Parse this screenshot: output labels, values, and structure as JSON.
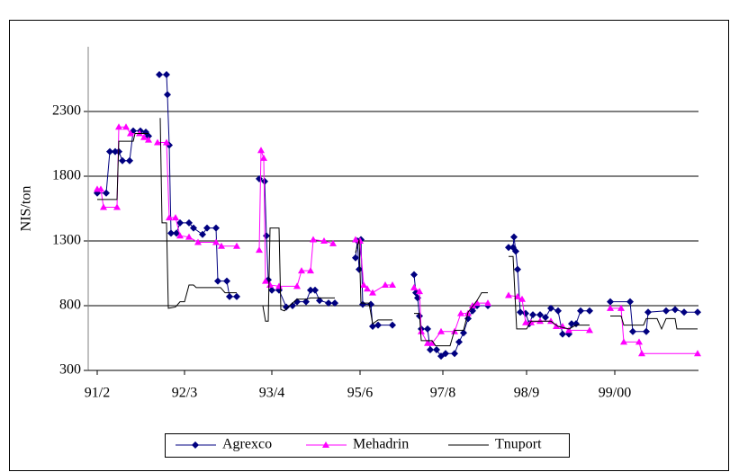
{
  "chart_data": {
    "type": "line",
    "y_label": "NIS/ton",
    "ylim": [
      300,
      2800
    ],
    "yticks": [
      300,
      800,
      1300,
      1800,
      2300
    ],
    "grid": true,
    "xlim": [
      -10,
      668
    ],
    "xticks": [
      {
        "value": 0,
        "label": "91/2"
      },
      {
        "value": 97,
        "label": "92/3"
      },
      {
        "value": 194,
        "label": "93/4"
      },
      {
        "value": 292,
        "label": "95/6"
      },
      {
        "value": 384,
        "label": "97/8"
      },
      {
        "value": 477,
        "label": "98/9"
      },
      {
        "value": 575,
        "label": "99/00"
      }
    ],
    "legend": "bottom",
    "series": [
      {
        "name": "Agrexco",
        "color": "#000080",
        "marker": "diamond",
        "x": [
          0,
          10,
          14,
          20,
          24,
          28,
          36,
          40,
          48,
          54,
          57,
          null,
          69,
          77,
          78,
          80,
          82,
          88,
          92,
          102,
          107,
          117,
          122,
          132,
          134,
          144,
          147,
          155,
          null,
          180,
          186,
          188,
          190,
          194,
          202,
          210,
          217,
          222,
          232,
          237,
          242,
          247,
          257,
          264,
          null,
          287,
          289,
          291,
          293,
          295,
          304,
          306,
          312,
          328,
          null,
          352,
          354,
          356,
          358,
          360,
          367,
          370,
          377,
          382,
          387,
          397,
          402,
          407,
          412,
          417,
          422,
          434,
          null,
          457,
          462,
          463,
          465,
          467,
          470,
          476,
          480,
          484,
          492,
          498,
          504,
          512,
          517,
          524,
          527,
          532,
          537,
          547,
          null,
          570,
          592,
          595,
          610,
          612,
          632,
          642,
          652,
          667
        ],
        "values": [
          1670,
          1670,
          1990,
          1990,
          1990,
          1920,
          1920,
          2150,
          2150,
          2140,
          2110,
          null,
          2585,
          2585,
          2430,
          2040,
          1360,
          1360,
          1440,
          1440,
          1400,
          1350,
          1400,
          1400,
          990,
          990,
          870,
          870,
          null,
          1780,
          1760,
          1340,
          1000,
          920,
          920,
          790,
          800,
          830,
          830,
          920,
          920,
          840,
          820,
          820,
          null,
          1170,
          1300,
          1080,
          1310,
          810,
          810,
          640,
          650,
          650,
          null,
          1040,
          900,
          860,
          720,
          620,
          620,
          460,
          460,
          410,
          430,
          430,
          520,
          590,
          700,
          760,
          800,
          800,
          null,
          1250,
          1250,
          1330,
          1220,
          1080,
          750,
          740,
          660,
          730,
          730,
          710,
          780,
          760,
          580,
          580,
          660,
          660,
          760,
          760,
          null,
          830,
          830,
          600,
          600,
          750,
          760,
          770,
          750,
          750
        ]
      },
      {
        "name": "Mehadrin",
        "color": "#ff00ff",
        "marker": "triangle",
        "x": [
          0,
          4,
          7,
          22,
          24,
          32,
          37,
          47,
          52,
          57,
          null,
          67,
          77,
          80,
          87,
          92,
          102,
          112,
          132,
          138,
          155,
          null,
          180,
          182,
          185,
          187,
          192,
          202,
          222,
          227,
          237,
          240,
          252,
          262,
          null,
          287,
          292,
          296,
          300,
          306,
          320,
          328,
          null,
          352,
          358,
          360,
          367,
          372,
          382,
          397,
          404,
          412,
          417,
          422,
          434,
          null,
          457,
          467,
          472,
          476,
          482,
          492,
          504,
          510,
          517,
          524,
          547,
          null,
          570,
          582,
          585,
          602,
          605,
          667
        ],
        "values": [
          1700,
          1700,
          1560,
          1560,
          2180,
          2180,
          2130,
          2130,
          2100,
          2080,
          null,
          2060,
          2060,
          1480,
          1480,
          1340,
          1330,
          1290,
          1290,
          1260,
          1260,
          null,
          1230,
          2000,
          1940,
          990,
          960,
          950,
          950,
          1070,
          1070,
          1310,
          1300,
          1280,
          null,
          1310,
          1300,
          960,
          930,
          900,
          960,
          960,
          null,
          940,
          910,
          600,
          510,
          510,
          600,
          600,
          740,
          740,
          800,
          820,
          820,
          null,
          880,
          870,
          850,
          670,
          670,
          680,
          680,
          640,
          640,
          610,
          610,
          null,
          780,
          780,
          520,
          520,
          430,
          430
        ]
      },
      {
        "name": "Tnuport",
        "color": "#000000",
        "marker": "none",
        "x": [
          0,
          22,
          24,
          40,
          42,
          57,
          null,
          70,
          72,
          77,
          79,
          87,
          92,
          97,
          102,
          107,
          110,
          137,
          142,
          155,
          null,
          180,
          184,
          187,
          190,
          192,
          196,
          202,
          204,
          208,
          212,
          222,
          232,
          237,
          264,
          null,
          287,
          291,
          293,
          302,
          306,
          312,
          328,
          null,
          352,
          358,
          360,
          372,
          376,
          392,
          397,
          407,
          412,
          422,
          427,
          434,
          null,
          457,
          462,
          466,
          477,
          482,
          492,
          504,
          512,
          524,
          532,
          547,
          null,
          570,
          582,
          585,
          607,
          610,
          622,
          627,
          632,
          642,
          644,
          667
        ],
        "values": [
          1620,
          1620,
          2070,
          2070,
          2130,
          2130,
          null,
          2250,
          1440,
          1440,
          780,
          790,
          830,
          830,
          960,
          960,
          940,
          940,
          900,
          900,
          null,
          800,
          800,
          680,
          680,
          1400,
          1400,
          1400,
          770,
          760,
          790,
          850,
          850,
          860,
          860,
          null,
          1210,
          1310,
          820,
          820,
          660,
          690,
          690,
          null,
          740,
          740,
          530,
          530,
          490,
          490,
          610,
          610,
          750,
          840,
          900,
          900,
          null,
          1180,
          1180,
          620,
          620,
          680,
          680,
          680,
          640,
          620,
          650,
          650,
          null,
          720,
          720,
          650,
          650,
          700,
          700,
          620,
          700,
          700,
          620,
          620
        ]
      }
    ]
  }
}
